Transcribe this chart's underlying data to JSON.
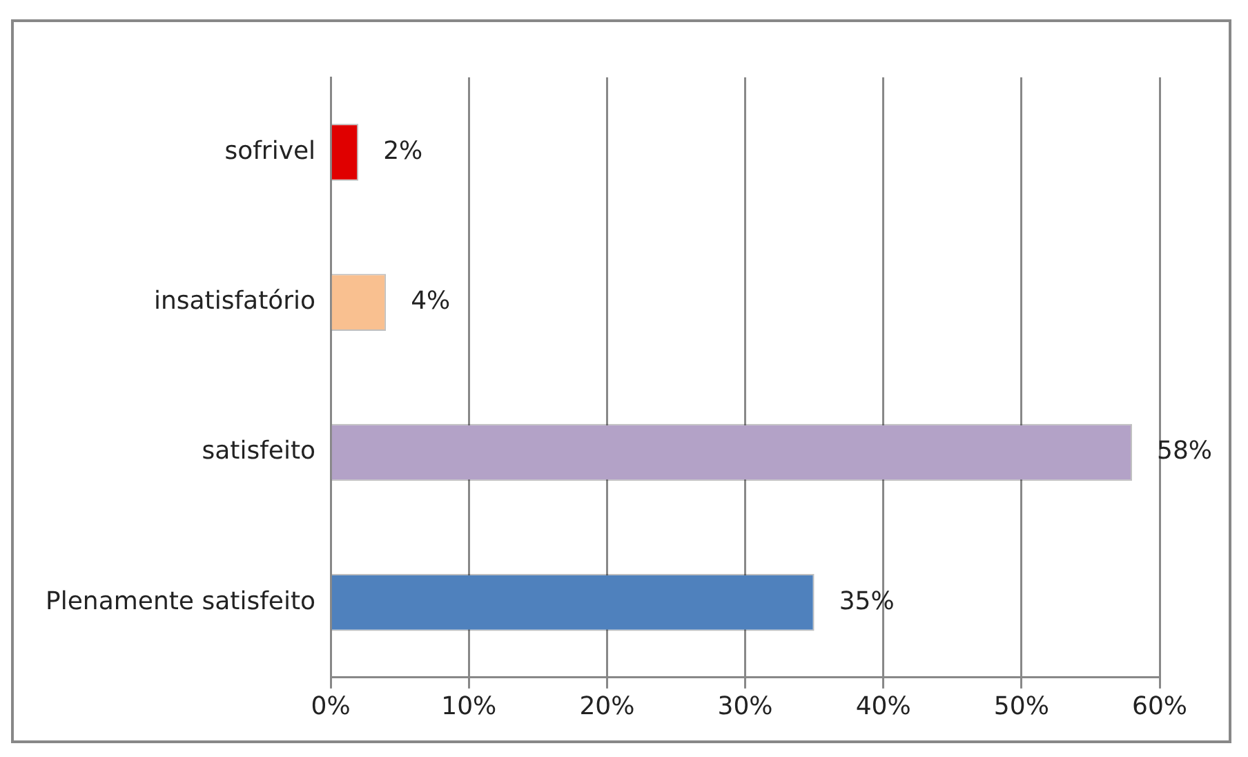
{
  "chart_data": {
    "type": "bar",
    "orientation": "horizontal",
    "categories": [
      "sofrivel",
      "insatisfatório",
      "satisfeito",
      "Plenamente satisfeito"
    ],
    "values": [
      2,
      4,
      58,
      35
    ],
    "colors": [
      "#e00000",
      "#f9c090",
      "#b3a2c7",
      "#4f81bd"
    ],
    "value_labels": [
      "2%",
      "4%",
      "58%",
      "35%"
    ],
    "xlim": [
      0,
      60
    ],
    "xticks": [
      {
        "value": 0,
        "label": "0%"
      },
      {
        "value": 10,
        "label": "10%"
      },
      {
        "value": 20,
        "label": "20%"
      },
      {
        "value": 30,
        "label": "30%"
      },
      {
        "value": 40,
        "label": "40%"
      },
      {
        "value": 50,
        "label": "50%"
      },
      {
        "value": 60,
        "label": "60%"
      }
    ],
    "grid": "x",
    "legend": false
  }
}
